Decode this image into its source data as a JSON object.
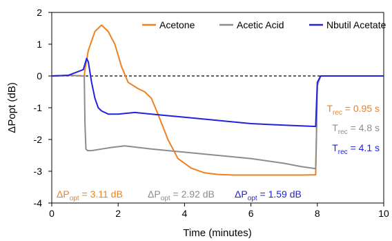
{
  "colors": {
    "acetone": "#f07f1e",
    "acetic_acid": "#8c8c8c",
    "nbutil_acetate": "#2020e0"
  },
  "chart_data": {
    "type": "line",
    "xlabel": "Time (minutes)",
    "ylabel": "ΔPopt (dB)",
    "xlim": [
      0,
      10
    ],
    "ylim": [
      -4,
      2
    ],
    "xticks": [
      "0",
      "2",
      "4",
      "6",
      "8",
      "10"
    ],
    "yticks": [
      "2",
      "1",
      "0",
      "-1",
      "-2",
      "-3",
      "-4"
    ],
    "grid": false,
    "legend_position": "top-right",
    "reference_line": {
      "y": 0,
      "style": "dashed"
    },
    "series": [
      {
        "name": "Acetone",
        "color": "#f07f1e",
        "x": [
          0,
          0.5,
          0.98,
          1.0,
          1.1,
          1.3,
          1.5,
          1.7,
          1.9,
          2.1,
          2.3,
          2.6,
          2.8,
          3.0,
          3.2,
          3.5,
          3.8,
          4.2,
          4.6,
          5.0,
          5.5,
          6.0,
          6.5,
          7.0,
          7.5,
          7.95,
          7.97,
          8.0,
          8.1,
          9.0,
          10.0
        ],
        "y": [
          0.0,
          0.02,
          0.0,
          0.2,
          0.8,
          1.4,
          1.6,
          1.4,
          1.0,
          0.3,
          -0.2,
          -0.4,
          -0.5,
          -0.7,
          -1.2,
          -2.0,
          -2.6,
          -2.9,
          -3.05,
          -3.1,
          -3.12,
          -3.12,
          -3.12,
          -3.12,
          -3.12,
          -3.11,
          -2.0,
          -0.3,
          0.0,
          0.0,
          0.0
        ]
      },
      {
        "name": "Acetic Acid",
        "color": "#8c8c8c",
        "x": [
          0,
          0.5,
          0.98,
          1.0,
          1.03,
          1.08,
          1.2,
          1.5,
          1.8,
          2.2,
          2.6,
          3.0,
          4.0,
          5.0,
          6.0,
          7.0,
          7.5,
          7.95,
          7.97,
          8.0,
          8.1,
          9.0,
          10.0
        ],
        "y": [
          0.0,
          0.02,
          0.0,
          -1.5,
          -2.3,
          -2.35,
          -2.35,
          -2.3,
          -2.25,
          -2.2,
          -2.25,
          -2.3,
          -2.4,
          -2.5,
          -2.6,
          -2.75,
          -2.85,
          -2.92,
          -2.0,
          -0.3,
          0.0,
          0.0,
          0.0
        ]
      },
      {
        "name": "Nbutil Acetate",
        "color": "#2020e0",
        "x": [
          0,
          0.5,
          0.95,
          1.05,
          1.1,
          1.2,
          1.3,
          1.4,
          1.5,
          1.7,
          2.0,
          2.5,
          3.0,
          4.0,
          5.0,
          6.0,
          7.0,
          7.95,
          7.97,
          8.0,
          8.1,
          9.0,
          10.0
        ],
        "y": [
          0.0,
          0.02,
          0.2,
          0.55,
          0.45,
          -0.2,
          -0.7,
          -1.0,
          -1.1,
          -1.2,
          -1.2,
          -1.15,
          -1.2,
          -1.3,
          -1.4,
          -1.5,
          -1.55,
          -1.59,
          -1.0,
          -0.2,
          0.0,
          0.0,
          0.0
        ]
      }
    ],
    "annotations": {
      "recovery": [
        {
          "label": "T",
          "sub": "rec",
          "value": " = 0.95 s",
          "color": "#f07f1e"
        },
        {
          "label": "T",
          "sub": "rec",
          "value": " = 4.8 s",
          "color": "#8c8c8c"
        },
        {
          "label": "T",
          "sub": "rec",
          "value": " = 4.1 s",
          "color": "#2020e0"
        }
      ],
      "delta": [
        {
          "label": "ΔP",
          "sub": "opt",
          "value": " = 3.11 dB",
          "color": "#f07f1e"
        },
        {
          "label": "ΔP",
          "sub": "opt",
          "value": " = 2.92 dB",
          "color": "#8c8c8c"
        },
        {
          "label": "ΔP",
          "sub": "opt",
          "value": " = 1.59 dB",
          "color": "#2020e0"
        }
      ]
    }
  }
}
